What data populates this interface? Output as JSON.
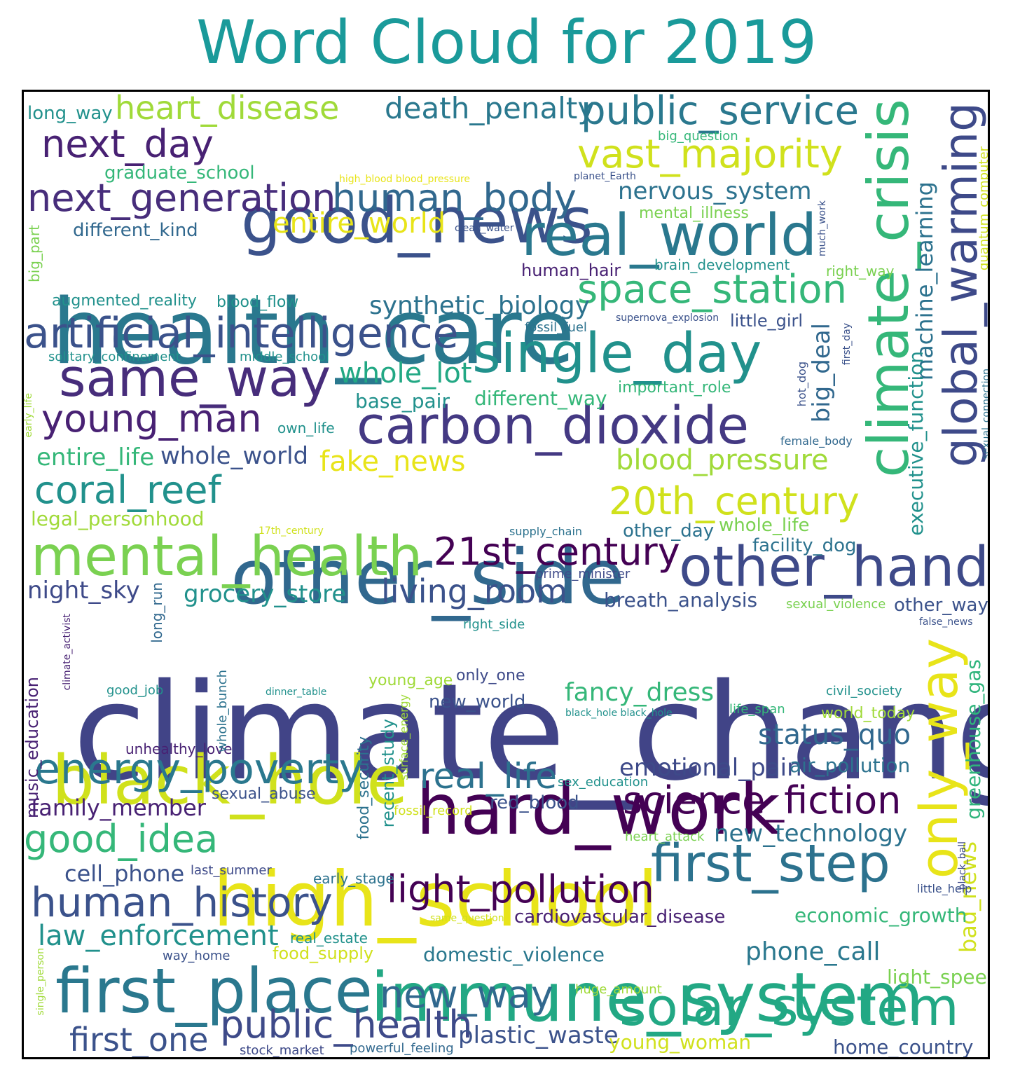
{
  "title": "Word Cloud for 2019",
  "palette": {
    "title": "#1a9a9a",
    "frame": "#000000",
    "background": "#ffffff"
  },
  "words": [
    {
      "text": "climate_change",
      "color": "#414487"
    },
    {
      "text": "health_care",
      "color": "#2a788e"
    },
    {
      "text": "good_news",
      "color": "#3b528b"
    },
    {
      "text": "other_side",
      "color": "#31688e"
    },
    {
      "text": "hard_work",
      "color": "#440154"
    },
    {
      "text": "high_school",
      "color": "#e8e419"
    },
    {
      "text": "immune_system",
      "color": "#22a884"
    },
    {
      "text": "black_hole",
      "color": "#d0e11c"
    },
    {
      "text": "climate_crisis",
      "color": "#35b779"
    },
    {
      "text": "global_warming",
      "color": "#3e4a89"
    },
    {
      "text": "real_world",
      "color": "#2a788e"
    },
    {
      "text": "single_day",
      "color": "#21918c"
    },
    {
      "text": "artificial_intelligence",
      "color": "#3b528b"
    },
    {
      "text": "same_way",
      "color": "#472d7b"
    },
    {
      "text": "carbon_dioxide",
      "color": "#443983"
    },
    {
      "text": "mental_health",
      "color": "#7ad151"
    },
    {
      "text": "other_hand",
      "color": "#3e4a89"
    },
    {
      "text": "first_place",
      "color": "#2a788e"
    },
    {
      "text": "solar_system",
      "color": "#22a884"
    },
    {
      "text": "first_step",
      "color": "#2c728e"
    },
    {
      "text": "only_way",
      "color": "#e8e419"
    },
    {
      "text": "public_service",
      "color": "#2a788e"
    },
    {
      "text": "vast_majority",
      "color": "#d0e11c"
    },
    {
      "text": "next_generation",
      "color": "#472d7b"
    },
    {
      "text": "human_body",
      "color": "#31688e"
    },
    {
      "text": "next_day",
      "color": "#482173"
    },
    {
      "text": "heart_disease",
      "color": "#a0da39"
    },
    {
      "text": "death_penalty",
      "color": "#2a788e"
    },
    {
      "text": "space_station",
      "color": "#35b779"
    },
    {
      "text": "21st_century",
      "color": "#440154"
    },
    {
      "text": "20th_century",
      "color": "#d0e11c"
    },
    {
      "text": "young_man",
      "color": "#482173"
    },
    {
      "text": "coral_reef",
      "color": "#21918c"
    },
    {
      "text": "energy_poverty",
      "color": "#2a788e"
    },
    {
      "text": "science_fiction",
      "color": "#440154"
    },
    {
      "text": "light_pollution",
      "color": "#440154"
    },
    {
      "text": "human_history",
      "color": "#3b528b"
    },
    {
      "text": "public_health",
      "color": "#3e4a89"
    },
    {
      "text": "new_way",
      "color": "#31688e"
    },
    {
      "text": "good_idea",
      "color": "#35b779"
    },
    {
      "text": "real_life",
      "color": "#2c728e"
    },
    {
      "text": "living_room",
      "color": "#3b528b"
    },
    {
      "text": "first_one",
      "color": "#3b528b"
    },
    {
      "text": "entire_world",
      "color": "#e8e419"
    },
    {
      "text": "blood_pressure",
      "color": "#a0da39"
    },
    {
      "text": "fake_news",
      "color": "#e8e419"
    },
    {
      "text": "whole_lot",
      "color": "#22a884"
    },
    {
      "text": "status_quo",
      "color": "#31688e"
    },
    {
      "text": "law_enforcement",
      "color": "#21918c"
    },
    {
      "text": "synthetic_biology",
      "color": "#2c728e"
    },
    {
      "text": "nervous_system",
      "color": "#2c728e"
    },
    {
      "text": "machine_learning",
      "color": "#2c728e"
    },
    {
      "text": "executive_function",
      "color": "#21918c"
    },
    {
      "text": "greenhouse_gas",
      "color": "#2fb47c"
    },
    {
      "text": "bad_news",
      "color": "#d0e11c"
    },
    {
      "text": "big_deal",
      "color": "#31688e"
    },
    {
      "text": "fancy_dress",
      "color": "#35b779"
    },
    {
      "text": "emotional_pain",
      "color": "#3e4a89"
    },
    {
      "text": "grocery_store",
      "color": "#21918c"
    },
    {
      "text": "whole_world",
      "color": "#3b528b"
    },
    {
      "text": "entire_life",
      "color": "#35b779"
    },
    {
      "text": "night_sky",
      "color": "#3e4a89"
    },
    {
      "text": "family_member",
      "color": "#482173"
    },
    {
      "text": "cell_phone",
      "color": "#3b528b"
    },
    {
      "text": "phone_call",
      "color": "#2a788e"
    },
    {
      "text": "economic_growth",
      "color": "#35b779"
    },
    {
      "text": "new_technology",
      "color": "#2c728e"
    },
    {
      "text": "breath_analysis",
      "color": "#3b528b"
    },
    {
      "text": "air_pollution",
      "color": "#2c728e"
    },
    {
      "text": "domestic_violence",
      "color": "#2a788e"
    },
    {
      "text": "cardiovascular_disease",
      "color": "#482173"
    },
    {
      "text": "plastic_waste",
      "color": "#3b528b"
    },
    {
      "text": "young_woman",
      "color": "#d0e11c"
    },
    {
      "text": "home_country",
      "color": "#3b528b"
    },
    {
      "text": "light_speed",
      "color": "#7ad151"
    },
    {
      "text": "legal_personhood",
      "color": "#a0da39"
    },
    {
      "text": "different_way",
      "color": "#35b779"
    },
    {
      "text": "base_pair",
      "color": "#21918c"
    },
    {
      "text": "graduate_school",
      "color": "#35b779"
    },
    {
      "text": "different_kind",
      "color": "#31688e"
    },
    {
      "text": "augmented_reality",
      "color": "#21918c"
    },
    {
      "text": "blood_flow",
      "color": "#21918c"
    },
    {
      "text": "long_way",
      "color": "#21918c"
    },
    {
      "text": "human_hair",
      "color": "#482173"
    },
    {
      "text": "brain_development",
      "color": "#21918c"
    },
    {
      "text": "right_way",
      "color": "#7ad151"
    },
    {
      "text": "quantum_computer",
      "color": "#d0e11c"
    },
    {
      "text": "mental_illness",
      "color": "#7ad151"
    },
    {
      "text": "little_girl",
      "color": "#3b528b"
    },
    {
      "text": "important_role",
      "color": "#35b779"
    },
    {
      "text": "other_day",
      "color": "#2c728e"
    },
    {
      "text": "whole_life",
      "color": "#7ad151"
    },
    {
      "text": "facility_dog",
      "color": "#2c728e"
    },
    {
      "text": "other_way",
      "color": "#3b528b"
    },
    {
      "text": "young_age",
      "color": "#a0da39"
    },
    {
      "text": "only_one",
      "color": "#3e4a89"
    },
    {
      "text": "new_world",
      "color": "#3b528b"
    },
    {
      "text": "red_blood",
      "color": "#3b528b"
    },
    {
      "text": "world_today",
      "color": "#a0da39"
    },
    {
      "text": "life_span",
      "color": "#35b779"
    },
    {
      "text": "civil_society",
      "color": "#21918c"
    },
    {
      "text": "sexual_abuse",
      "color": "#3b528b"
    },
    {
      "text": "music_education",
      "color": "#482173"
    },
    {
      "text": "unhealthy_love",
      "color": "#482173"
    },
    {
      "text": "good_job",
      "color": "#21918c"
    },
    {
      "text": "whole_bunch",
      "color": "#2c728e"
    },
    {
      "text": "long_run",
      "color": "#31688e"
    },
    {
      "text": "food_security",
      "color": "#2c728e"
    },
    {
      "text": "recent_study",
      "color": "#21918c"
    },
    {
      "text": "food_supply",
      "color": "#d0e11c"
    },
    {
      "text": "real_estate",
      "color": "#21918c"
    },
    {
      "text": "way_home",
      "color": "#3b528b"
    },
    {
      "text": "huge_amount",
      "color": "#a0da39"
    },
    {
      "text": "powerful_feeling",
      "color": "#31688e"
    },
    {
      "text": "stock_market",
      "color": "#3e4a89"
    },
    {
      "text": "own_life",
      "color": "#21918c"
    },
    {
      "text": "middle_school",
      "color": "#21918c"
    },
    {
      "text": "solitary_confinement",
      "color": "#21918c"
    },
    {
      "text": "fossil_fuel",
      "color": "#2c728e"
    },
    {
      "text": "supernova_explosion",
      "color": "#3b528b"
    },
    {
      "text": "big_part",
      "color": "#7ad151"
    },
    {
      "text": "early_life",
      "color": "#a0da39"
    },
    {
      "text": "single_person",
      "color": "#a0da39"
    },
    {
      "text": "climate_activist",
      "color": "#482173"
    },
    {
      "text": "dinner_table",
      "color": "#21918c"
    },
    {
      "text": "surface_energy",
      "color": "#a0da39"
    },
    {
      "text": "black_hole black_hole",
      "color": "#21918c"
    },
    {
      "text": "sex_education",
      "color": "#21918c"
    },
    {
      "text": "fossil_record",
      "color": "#d0e11c"
    },
    {
      "text": "heart_attack",
      "color": "#7ad151"
    },
    {
      "text": "last_summer",
      "color": "#3e4a89"
    },
    {
      "text": "early_stage",
      "color": "#2c728e"
    },
    {
      "text": "same_question",
      "color": "#d0e11c"
    },
    {
      "text": "little_help",
      "color": "#3b528b"
    },
    {
      "text": "black_ball",
      "color": "#3e4a89"
    },
    {
      "text": "sexual_violence",
      "color": "#7ad151"
    },
    {
      "text": "false_news",
      "color": "#3b528b"
    },
    {
      "text": "right_side",
      "color": "#21918c"
    },
    {
      "text": "prime_minister",
      "color": "#3e4a89"
    },
    {
      "text": "supply_chain",
      "color": "#2c728e"
    },
    {
      "text": "17th_century",
      "color": "#d0e11c"
    },
    {
      "text": "hot_dog",
      "color": "#3b528b"
    },
    {
      "text": "first_day",
      "color": "#3b528b"
    },
    {
      "text": "female_body",
      "color": "#31688e"
    },
    {
      "text": "sexual_connection",
      "color": "#2c728e"
    },
    {
      "text": "much_work",
      "color": "#3b528b"
    },
    {
      "text": "clean_water",
      "color": "#3b528b"
    },
    {
      "text": "big_question",
      "color": "#35b779"
    },
    {
      "text": "high_blood blood_pressure",
      "color": "#e8e419"
    },
    {
      "text": "planet_Earth",
      "color": "#3b528b"
    }
  ]
}
